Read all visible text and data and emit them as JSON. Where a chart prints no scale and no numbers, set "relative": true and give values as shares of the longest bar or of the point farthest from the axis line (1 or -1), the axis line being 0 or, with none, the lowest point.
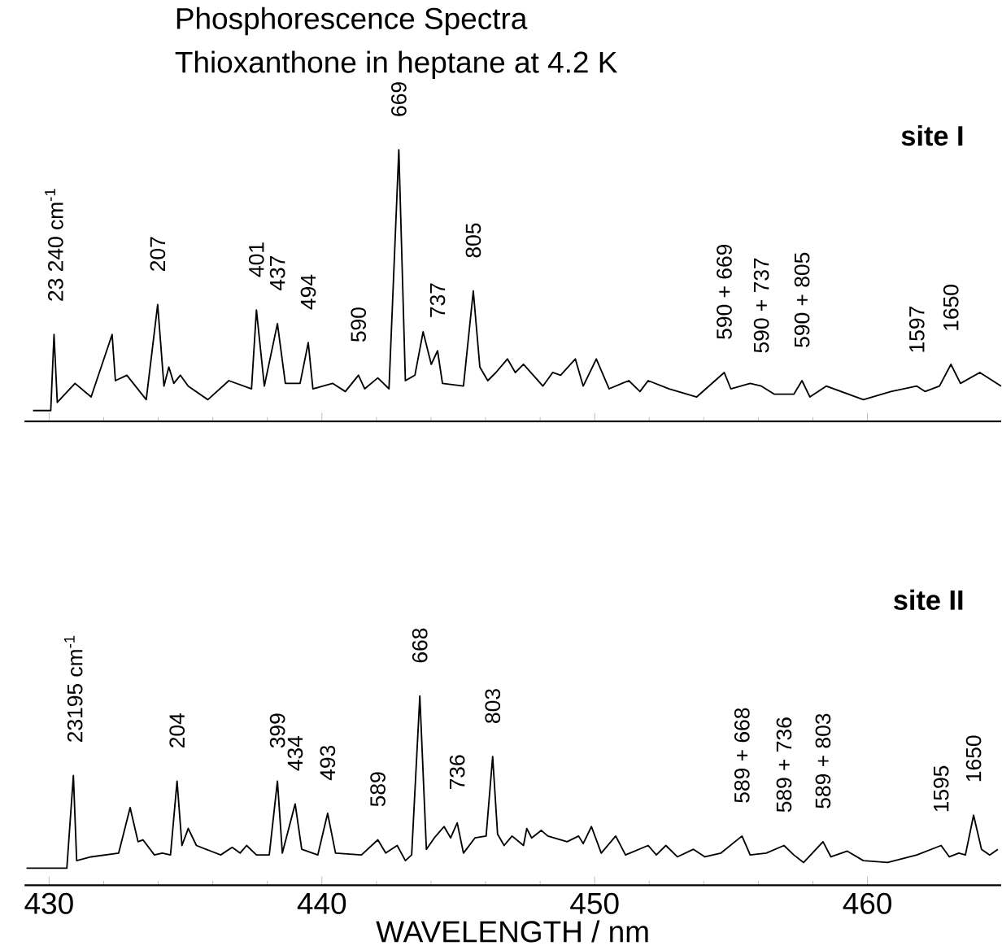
{
  "chart_data": [
    {
      "type": "line",
      "title": "Phosphorescence Spectra",
      "subtitle": "Thioxanthone in heptane at 4.2 K",
      "relative": true,
      "tick_labels": false,
      "xlim": [
        429.1,
        464.9
      ],
      "xticks": [
        430,
        440,
        450,
        460
      ],
      "series": [
        {
          "color": "#000000",
          "x": [
            429.41,
            430.06,
            430.18,
            430.3,
            430.95,
            431.54,
            432.31,
            432.43,
            432.85,
            433.56,
            433.98,
            434.21,
            434.39,
            434.57,
            434.81,
            435.1,
            435.82,
            436.59,
            437.42,
            437.6,
            437.89,
            438.37,
            438.66,
            439.2,
            439.5,
            439.67,
            440.39,
            440.86,
            441.34,
            441.57,
            442.05,
            442.46,
            442.82,
            443.06,
            443.41,
            443.71,
            444.01,
            444.24,
            444.42,
            445.19,
            445.55,
            445.79,
            446.08,
            446.38,
            446.8,
            447.09,
            447.39,
            448.1,
            448.46,
            448.75,
            449.29,
            449.58,
            450.06,
            450.53,
            451.25,
            451.66,
            451.96,
            452.73,
            453.74,
            454.75,
            454.99,
            455.7,
            456.11,
            456.59,
            457.3,
            457.6,
            457.89,
            458.49,
            459.85,
            460.86,
            461.81,
            462.11,
            462.64,
            463.06,
            463.41,
            464.12,
            464.9
          ],
          "values": [
            0.04,
            0.04,
            0.32,
            0.07,
            0.14,
            0.09,
            0.32,
            0.15,
            0.17,
            0.08,
            0.43,
            0.13,
            0.2,
            0.14,
            0.17,
            0.13,
            0.08,
            0.15,
            0.12,
            0.41,
            0.13,
            0.36,
            0.14,
            0.14,
            0.29,
            0.12,
            0.14,
            0.11,
            0.17,
            0.12,
            0.16,
            0.12,
            1.0,
            0.15,
            0.17,
            0.33,
            0.21,
            0.26,
            0.14,
            0.13,
            0.48,
            0.2,
            0.15,
            0.18,
            0.23,
            0.18,
            0.21,
            0.13,
            0.18,
            0.17,
            0.23,
            0.13,
            0.23,
            0.12,
            0.15,
            0.11,
            0.15,
            0.12,
            0.09,
            0.18,
            0.12,
            0.14,
            0.13,
            0.1,
            0.1,
            0.15,
            0.09,
            0.13,
            0.08,
            0.11,
            0.13,
            0.11,
            0.13,
            0.21,
            0.14,
            0.18,
            0.13
          ]
        }
      ],
      "annotations": [
        "site I",
        {
          "text": "23 240 cm$^{-1}$",
          "x": 430.18,
          "y": 0.32
        },
        {
          "text": "207",
          "x": 433.98,
          "y": 0.43
        },
        {
          "text": "401",
          "x": 437.6,
          "y": 0.41
        },
        {
          "text": "437",
          "x": 438.37,
          "y": 0.36
        },
        {
          "text": "494",
          "x": 439.5,
          "y": 0.29
        },
        {
          "text": "590",
          "x": 441.34,
          "y": 0.17
        },
        {
          "text": "669",
          "x": 442.82,
          "y": 1.0
        },
        {
          "text": "737",
          "x": 444.24,
          "y": 0.26
        },
        {
          "text": "805",
          "x": 445.55,
          "y": 0.48
        },
        {
          "text": "590 + 669",
          "x": 454.75,
          "y": 0.18
        },
        {
          "text": "590 + 737",
          "x": 456.11,
          "y": 0.13
        },
        {
          "text": "590 + 805",
          "x": 457.6,
          "y": 0.15
        },
        {
          "text": "1597",
          "x": 461.81,
          "y": 0.13
        },
        {
          "text": "1650",
          "x": 463.06,
          "y": 0.21
        }
      ]
    },
    {
      "type": "line",
      "xlabel": "WAVELENGTH  / nm",
      "relative": true,
      "tick_labels": "x",
      "xlim": [
        429.1,
        464.9
      ],
      "xticks": [
        430,
        440,
        450,
        460
      ],
      "series": [
        {
          "color": "#000000",
          "x": [
            429.17,
            430.65,
            430.89,
            431.01,
            431.54,
            432.55,
            432.97,
            433.26,
            433.44,
            433.86,
            434.15,
            434.45,
            434.69,
            434.87,
            435.1,
            435.4,
            436.29,
            436.71,
            437.0,
            437.24,
            437.6,
            438.07,
            438.37,
            438.55,
            439.02,
            439.26,
            439.85,
            440.21,
            440.5,
            441.45,
            442.05,
            442.34,
            442.76,
            443.06,
            443.29,
            443.59,
            443.83,
            444.12,
            444.48,
            444.72,
            444.96,
            445.19,
            445.61,
            446.02,
            446.26,
            446.44,
            446.68,
            446.97,
            447.39,
            447.51,
            447.69,
            448.04,
            448.28,
            448.99,
            449.41,
            449.58,
            449.88,
            450.24,
            450.77,
            451.13,
            451.96,
            452.26,
            452.61,
            453.03,
            453.62,
            454.04,
            454.63,
            455.4,
            455.7,
            456.29,
            456.94,
            457.3,
            457.66,
            458.37,
            458.66,
            459.26,
            459.85,
            460.74,
            461.81,
            462.7,
            463.0,
            463.35,
            463.59,
            463.89,
            464.18,
            464.48,
            464.78
          ],
          "values": [
            0.09,
            0.09,
            0.58,
            0.13,
            0.15,
            0.17,
            0.41,
            0.23,
            0.24,
            0.16,
            0.17,
            0.16,
            0.55,
            0.21,
            0.3,
            0.21,
            0.16,
            0.2,
            0.17,
            0.21,
            0.16,
            0.16,
            0.55,
            0.17,
            0.43,
            0.19,
            0.16,
            0.38,
            0.17,
            0.16,
            0.24,
            0.17,
            0.21,
            0.13,
            0.16,
            1.0,
            0.19,
            0.25,
            0.31,
            0.25,
            0.33,
            0.17,
            0.25,
            0.26,
            0.68,
            0.27,
            0.21,
            0.26,
            0.21,
            0.3,
            0.25,
            0.29,
            0.26,
            0.23,
            0.26,
            0.22,
            0.31,
            0.17,
            0.26,
            0.16,
            0.21,
            0.16,
            0.21,
            0.15,
            0.19,
            0.15,
            0.17,
            0.26,
            0.16,
            0.17,
            0.21,
            0.16,
            0.12,
            0.23,
            0.15,
            0.18,
            0.13,
            0.12,
            0.16,
            0.21,
            0.15,
            0.17,
            0.16,
            0.37,
            0.19,
            0.16,
            0.19
          ]
        }
      ],
      "annotations": [
        "site II",
        {
          "text": "23195 cm$^{-1}$",
          "x": 430.89,
          "y": 0.58
        },
        {
          "text": "204",
          "x": 434.69,
          "y": 0.55
        },
        {
          "text": "399",
          "x": 438.37,
          "y": 0.55
        },
        {
          "text": "434",
          "x": 439.02,
          "y": 0.43
        },
        {
          "text": "493",
          "x": 440.21,
          "y": 0.38
        },
        {
          "text": "589",
          "x": 442.05,
          "y": 0.24
        },
        {
          "text": "668",
          "x": 443.59,
          "y": 1.0
        },
        {
          "text": "736",
          "x": 444.96,
          "y": 0.33
        },
        {
          "text": "803",
          "x": 446.26,
          "y": 0.68
        },
        {
          "text": "589 + 668",
          "x": 455.4,
          "y": 0.26
        },
        {
          "text": "589 + 736",
          "x": 456.94,
          "y": 0.21
        },
        {
          "text": "589 + 803",
          "x": 458.37,
          "y": 0.23
        },
        {
          "text": "1595",
          "x": 462.7,
          "y": 0.21
        },
        {
          "text": "1650",
          "x": 463.89,
          "y": 0.37
        }
      ]
    }
  ]
}
